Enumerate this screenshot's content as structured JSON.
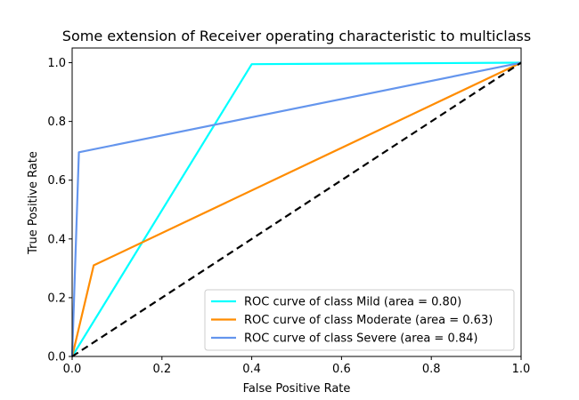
{
  "chart_data": {
    "type": "line",
    "title": "Some extension of Receiver operating characteristic to multiclass",
    "xlabel": "False Positive Rate",
    "ylabel": "True Positive Rate",
    "xlim": [
      0.0,
      1.0
    ],
    "ylim": [
      0.0,
      1.05
    ],
    "xticks": [
      "0.0",
      "0.2",
      "0.4",
      "0.6",
      "0.8",
      "1.0"
    ],
    "yticks": [
      "0.0",
      "0.2",
      "0.4",
      "0.6",
      "0.8",
      "1.0"
    ],
    "grid": false,
    "legend_position": "lower-right",
    "series": [
      {
        "name": "ROC curve of class Mild (area = 0.80)",
        "color": "#00ffff",
        "x": [
          0.0,
          0.4,
          1.0
        ],
        "y": [
          0.0,
          0.995,
          1.0
        ]
      },
      {
        "name": "ROC curve of class Moderate (area = 0.63)",
        "color": "#ff8c00",
        "x": [
          0.0,
          0.048,
          1.0
        ],
        "y": [
          0.0,
          0.31,
          1.0
        ]
      },
      {
        "name": "ROC curve of class Severe (area = 0.84)",
        "color": "#6495ed",
        "x": [
          0.0,
          0.015,
          1.0
        ],
        "y": [
          0.0,
          0.695,
          1.0
        ]
      }
    ],
    "reference_line": {
      "style": "dashed",
      "color": "#000000",
      "x": [
        0.0,
        1.0
      ],
      "y": [
        0.0,
        1.0
      ]
    }
  }
}
